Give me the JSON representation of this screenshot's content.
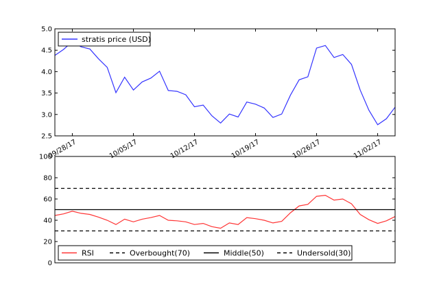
{
  "chart_data": [
    {
      "type": "line",
      "title": "",
      "xlabel": "",
      "ylabel": "",
      "ylim": [
        2.5,
        5.0
      ],
      "yticks": [
        "2.5",
        "3.0",
        "3.5",
        "4.0",
        "4.5",
        "5.0"
      ],
      "xticks": [
        "09/28/17",
        "10/05/17",
        "10/12/17",
        "10/19/17",
        "10/26/17",
        "11/02/17"
      ],
      "x_start": "09/26/17",
      "x_end": "11/04/17",
      "grid": false,
      "legend_position": "top-left",
      "series": [
        {
          "name": "stratis price (USD)",
          "color": "#3333ff",
          "values": [
            4.38,
            4.52,
            4.7,
            4.58,
            4.53,
            4.3,
            4.1,
            3.51,
            3.87,
            3.57,
            3.76,
            3.85,
            4.01,
            3.56,
            3.54,
            3.46,
            3.18,
            3.22,
            2.97,
            2.8,
            3.01,
            2.94,
            3.29,
            3.24,
            3.15,
            2.93,
            3.01,
            3.45,
            3.81,
            3.88,
            4.55,
            4.61,
            4.33,
            4.4,
            4.17,
            3.57,
            3.1,
            2.76,
            2.9,
            3.17
          ]
        }
      ]
    },
    {
      "type": "line",
      "title": "",
      "xlabel": "",
      "ylabel": "",
      "ylim": [
        0,
        100
      ],
      "yticks": [
        "0",
        "20",
        "40",
        "60",
        "80",
        "100"
      ],
      "grid": false,
      "legend_position": "bottom",
      "series": [
        {
          "name": "RSI",
          "color": "#ff3333",
          "style": "solid",
          "values": [
            44.5,
            46.0,
            48.5,
            46.5,
            45.5,
            43.0,
            40.0,
            36.0,
            41.0,
            38.5,
            41.0,
            42.5,
            44.5,
            40.0,
            39.5,
            38.5,
            36.0,
            37.0,
            34.0,
            32.5,
            37.5,
            36.0,
            42.5,
            41.5,
            40.0,
            37.5,
            39.0,
            47.0,
            53.5,
            55.0,
            62.5,
            63.5,
            59.0,
            60.0,
            55.5,
            45.5,
            40.5,
            37.0,
            39.5,
            43.5
          ]
        },
        {
          "name": "Overbought(70)",
          "color": "#000000",
          "style": "dashed",
          "values": [
            70
          ]
        },
        {
          "name": "Middle(50)",
          "color": "#000000",
          "style": "solid",
          "values": [
            50
          ]
        },
        {
          "name": "Undersold(30)",
          "color": "#000000",
          "style": "dashed",
          "values": [
            30
          ]
        }
      ]
    }
  ]
}
